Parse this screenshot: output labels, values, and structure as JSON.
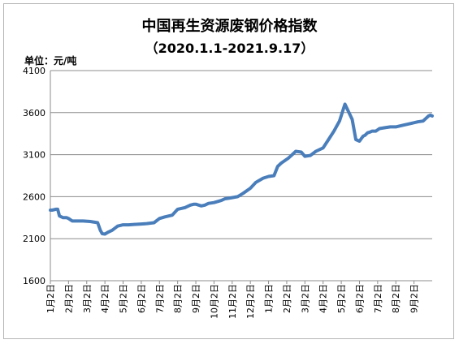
{
  "chart_data": {
    "type": "line",
    "title": "中国再生资源废钢价格指数",
    "subtitle": "（2020.1.1-2021.9.17）",
    "unit_label": "单位：元/吨",
    "ylim": [
      1600,
      4100
    ],
    "yticks": [
      "4100",
      "3600",
      "3100",
      "2600",
      "2100",
      "1600"
    ],
    "grid": true,
    "color": "#4a7ebb",
    "x_tick_labels": [
      "1月2日",
      "2月2日",
      "3月2日",
      "4月2日",
      "5月2日",
      "6月2日",
      "7月2日",
      "8月2日",
      "9月2日",
      "10月2日",
      "11月2日",
      "12月2日",
      "1月2日",
      "2月2日",
      "3月2日",
      "4月2日",
      "5月2日",
      "6月2日",
      "7月2日",
      "8月2日",
      "9月2日"
    ],
    "series": [
      {
        "x": [
          0.0,
          0.1,
          0.3,
          0.4,
          0.5,
          0.7,
          0.9,
          1.0,
          1.2,
          1.4,
          1.8,
          2.2,
          2.6,
          2.75,
          2.85,
          3.0,
          3.2,
          3.4,
          3.7,
          4.0,
          4.3,
          4.6,
          5.0,
          5.3,
          5.7,
          6.0,
          6.3,
          6.7,
          7.0,
          7.4,
          7.7,
          7.9,
          8.0,
          8.3,
          8.5,
          8.7,
          9.0,
          9.4,
          9.6,
          9.9,
          10.3,
          10.6,
          11.0,
          11.3,
          11.7,
          12.0,
          12.3,
          12.5,
          12.7,
          12.9,
          13.1,
          13.3,
          13.5,
          13.8,
          14.0,
          14.3,
          14.6,
          15.0,
          15.3,
          15.6,
          15.9,
          16.2,
          16.6,
          16.8,
          17.0,
          17.1,
          17.2,
          17.3,
          17.45,
          17.6,
          17.7,
          17.9,
          18.1,
          18.4,
          18.7,
          19.0,
          19.4,
          19.8,
          20.2,
          20.5,
          20.8,
          20.9,
          21.0
        ],
        "values": [
          2440,
          2440,
          2450,
          2450,
          2370,
          2350,
          2350,
          2340,
          2310,
          2310,
          2310,
          2305,
          2290,
          2200,
          2160,
          2155,
          2180,
          2200,
          2250,
          2265,
          2265,
          2270,
          2275,
          2280,
          2290,
          2340,
          2360,
          2380,
          2450,
          2470,
          2500,
          2510,
          2510,
          2490,
          2500,
          2520,
          2530,
          2555,
          2575,
          2585,
          2600,
          2640,
          2700,
          2770,
          2820,
          2840,
          2850,
          2960,
          3000,
          3030,
          3060,
          3100,
          3140,
          3130,
          3080,
          3090,
          3140,
          3180,
          3280,
          3380,
          3500,
          3700,
          3520,
          3280,
          3260,
          3290,
          3320,
          3330,
          3360,
          3370,
          3380,
          3380,
          3410,
          3420,
          3430,
          3430,
          3450,
          3470,
          3490,
          3500,
          3560,
          3570,
          3560
        ]
      }
    ]
  }
}
